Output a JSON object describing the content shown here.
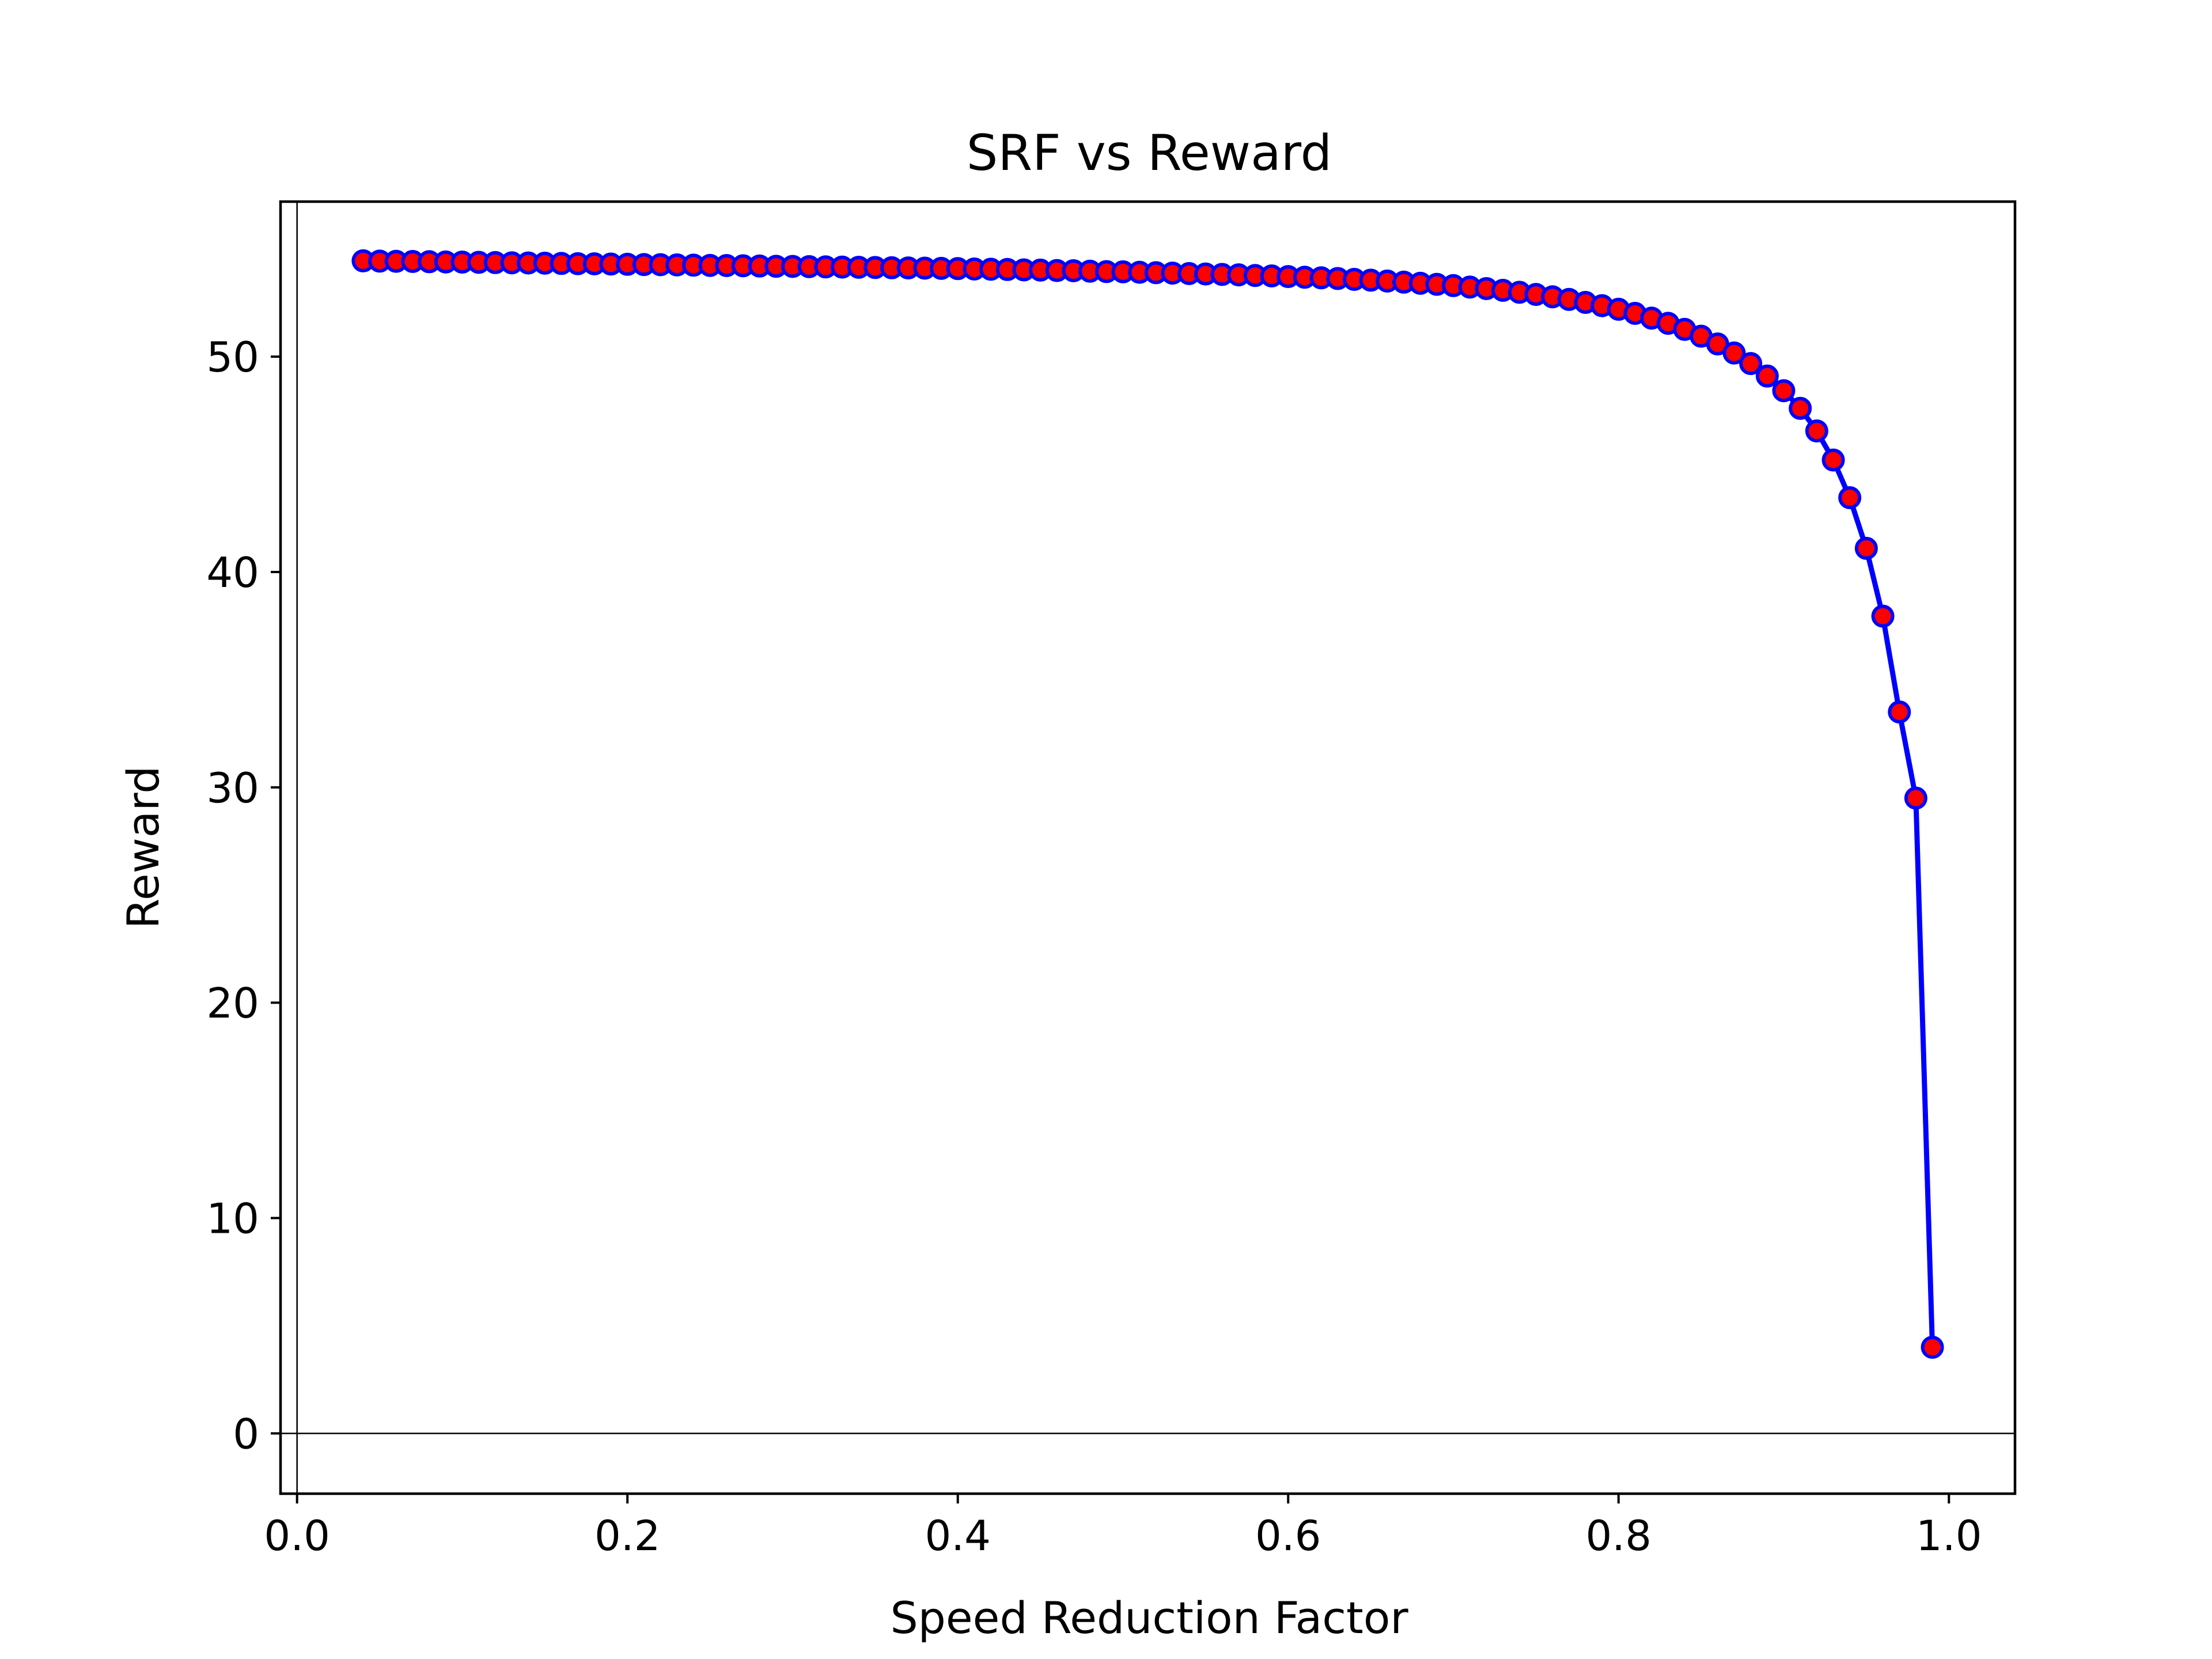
{
  "colors": {
    "line": "#0000ff",
    "marker_fill": "#ff0000",
    "marker_edge": "#0000ff",
    "axes": "#000000",
    "background": "#ffffff"
  },
  "chart_data": {
    "type": "line",
    "title": "SRF vs Reward",
    "xlabel": "Speed Reduction Factor",
    "ylabel": "Reward",
    "xlim": [
      -0.01,
      1.04
    ],
    "ylim": [
      -2.8,
      57.2
    ],
    "xticks": [
      0.0,
      0.2,
      0.4,
      0.6,
      0.8,
      1.0
    ],
    "xtick_labels": [
      "0.0",
      "0.2",
      "0.4",
      "0.6",
      "0.8",
      "1.0"
    ],
    "yticks": [
      0,
      10,
      20,
      30,
      40,
      50
    ],
    "ytick_labels": [
      "0",
      "10",
      "20",
      "30",
      "40",
      "50"
    ],
    "grid": false,
    "reference_lines": {
      "x": 0,
      "y": 0
    },
    "series": [
      {
        "x": [
          0.04,
          0.05,
          0.06,
          0.07,
          0.08,
          0.09,
          0.1,
          0.11,
          0.12,
          0.13,
          0.14,
          0.15,
          0.16,
          0.17,
          0.18,
          0.19,
          0.2,
          0.21,
          0.22,
          0.23,
          0.24,
          0.25,
          0.26,
          0.27,
          0.28,
          0.29,
          0.3,
          0.31,
          0.32,
          0.33,
          0.34,
          0.35,
          0.36,
          0.37,
          0.38,
          0.39,
          0.4,
          0.41,
          0.42,
          0.43,
          0.44,
          0.45,
          0.46,
          0.47,
          0.48,
          0.49,
          0.5,
          0.51,
          0.52,
          0.53,
          0.54,
          0.55,
          0.56,
          0.57,
          0.58,
          0.59,
          0.6,
          0.61,
          0.62,
          0.63,
          0.64,
          0.65,
          0.66,
          0.67,
          0.68,
          0.69,
          0.7,
          0.71,
          0.72,
          0.73,
          0.74,
          0.75,
          0.76,
          0.77,
          0.78,
          0.79,
          0.8,
          0.81,
          0.82,
          0.83,
          0.84,
          0.85,
          0.86,
          0.87,
          0.88,
          0.89,
          0.9,
          0.91,
          0.92,
          0.93,
          0.94,
          0.95,
          0.96,
          0.97,
          0.98,
          0.99
        ],
        "y": [
          54.45,
          54.44,
          54.43,
          54.42,
          54.41,
          54.4,
          54.39,
          54.38,
          54.37,
          54.36,
          54.35,
          54.34,
          54.33,
          54.32,
          54.31,
          54.3,
          54.29,
          54.28,
          54.27,
          54.26,
          54.25,
          54.24,
          54.23,
          54.22,
          54.21,
          54.2,
          54.19,
          54.18,
          54.17,
          54.16,
          54.15,
          54.14,
          54.13,
          54.12,
          54.11,
          54.1,
          54.09,
          54.07,
          54.06,
          54.05,
          54.03,
          54.02,
          54.0,
          53.99,
          53.97,
          53.95,
          53.94,
          53.92,
          53.9,
          53.88,
          53.86,
          53.84,
          53.82,
          53.8,
          53.77,
          53.75,
          53.72,
          53.69,
          53.66,
          53.63,
          53.59,
          53.55,
          53.51,
          53.46,
          53.41,
          53.36,
          53.3,
          53.23,
          53.16,
          53.08,
          52.99,
          52.89,
          52.78,
          52.66,
          52.52,
          52.37,
          52.2,
          52.01,
          51.79,
          51.55,
          51.27,
          50.95,
          50.59,
          50.17,
          49.68,
          49.1,
          48.42,
          47.6,
          46.55,
          45.2,
          43.45,
          41.1,
          37.95,
          33.5,
          29.5,
          4.0
        ]
      }
    ]
  }
}
